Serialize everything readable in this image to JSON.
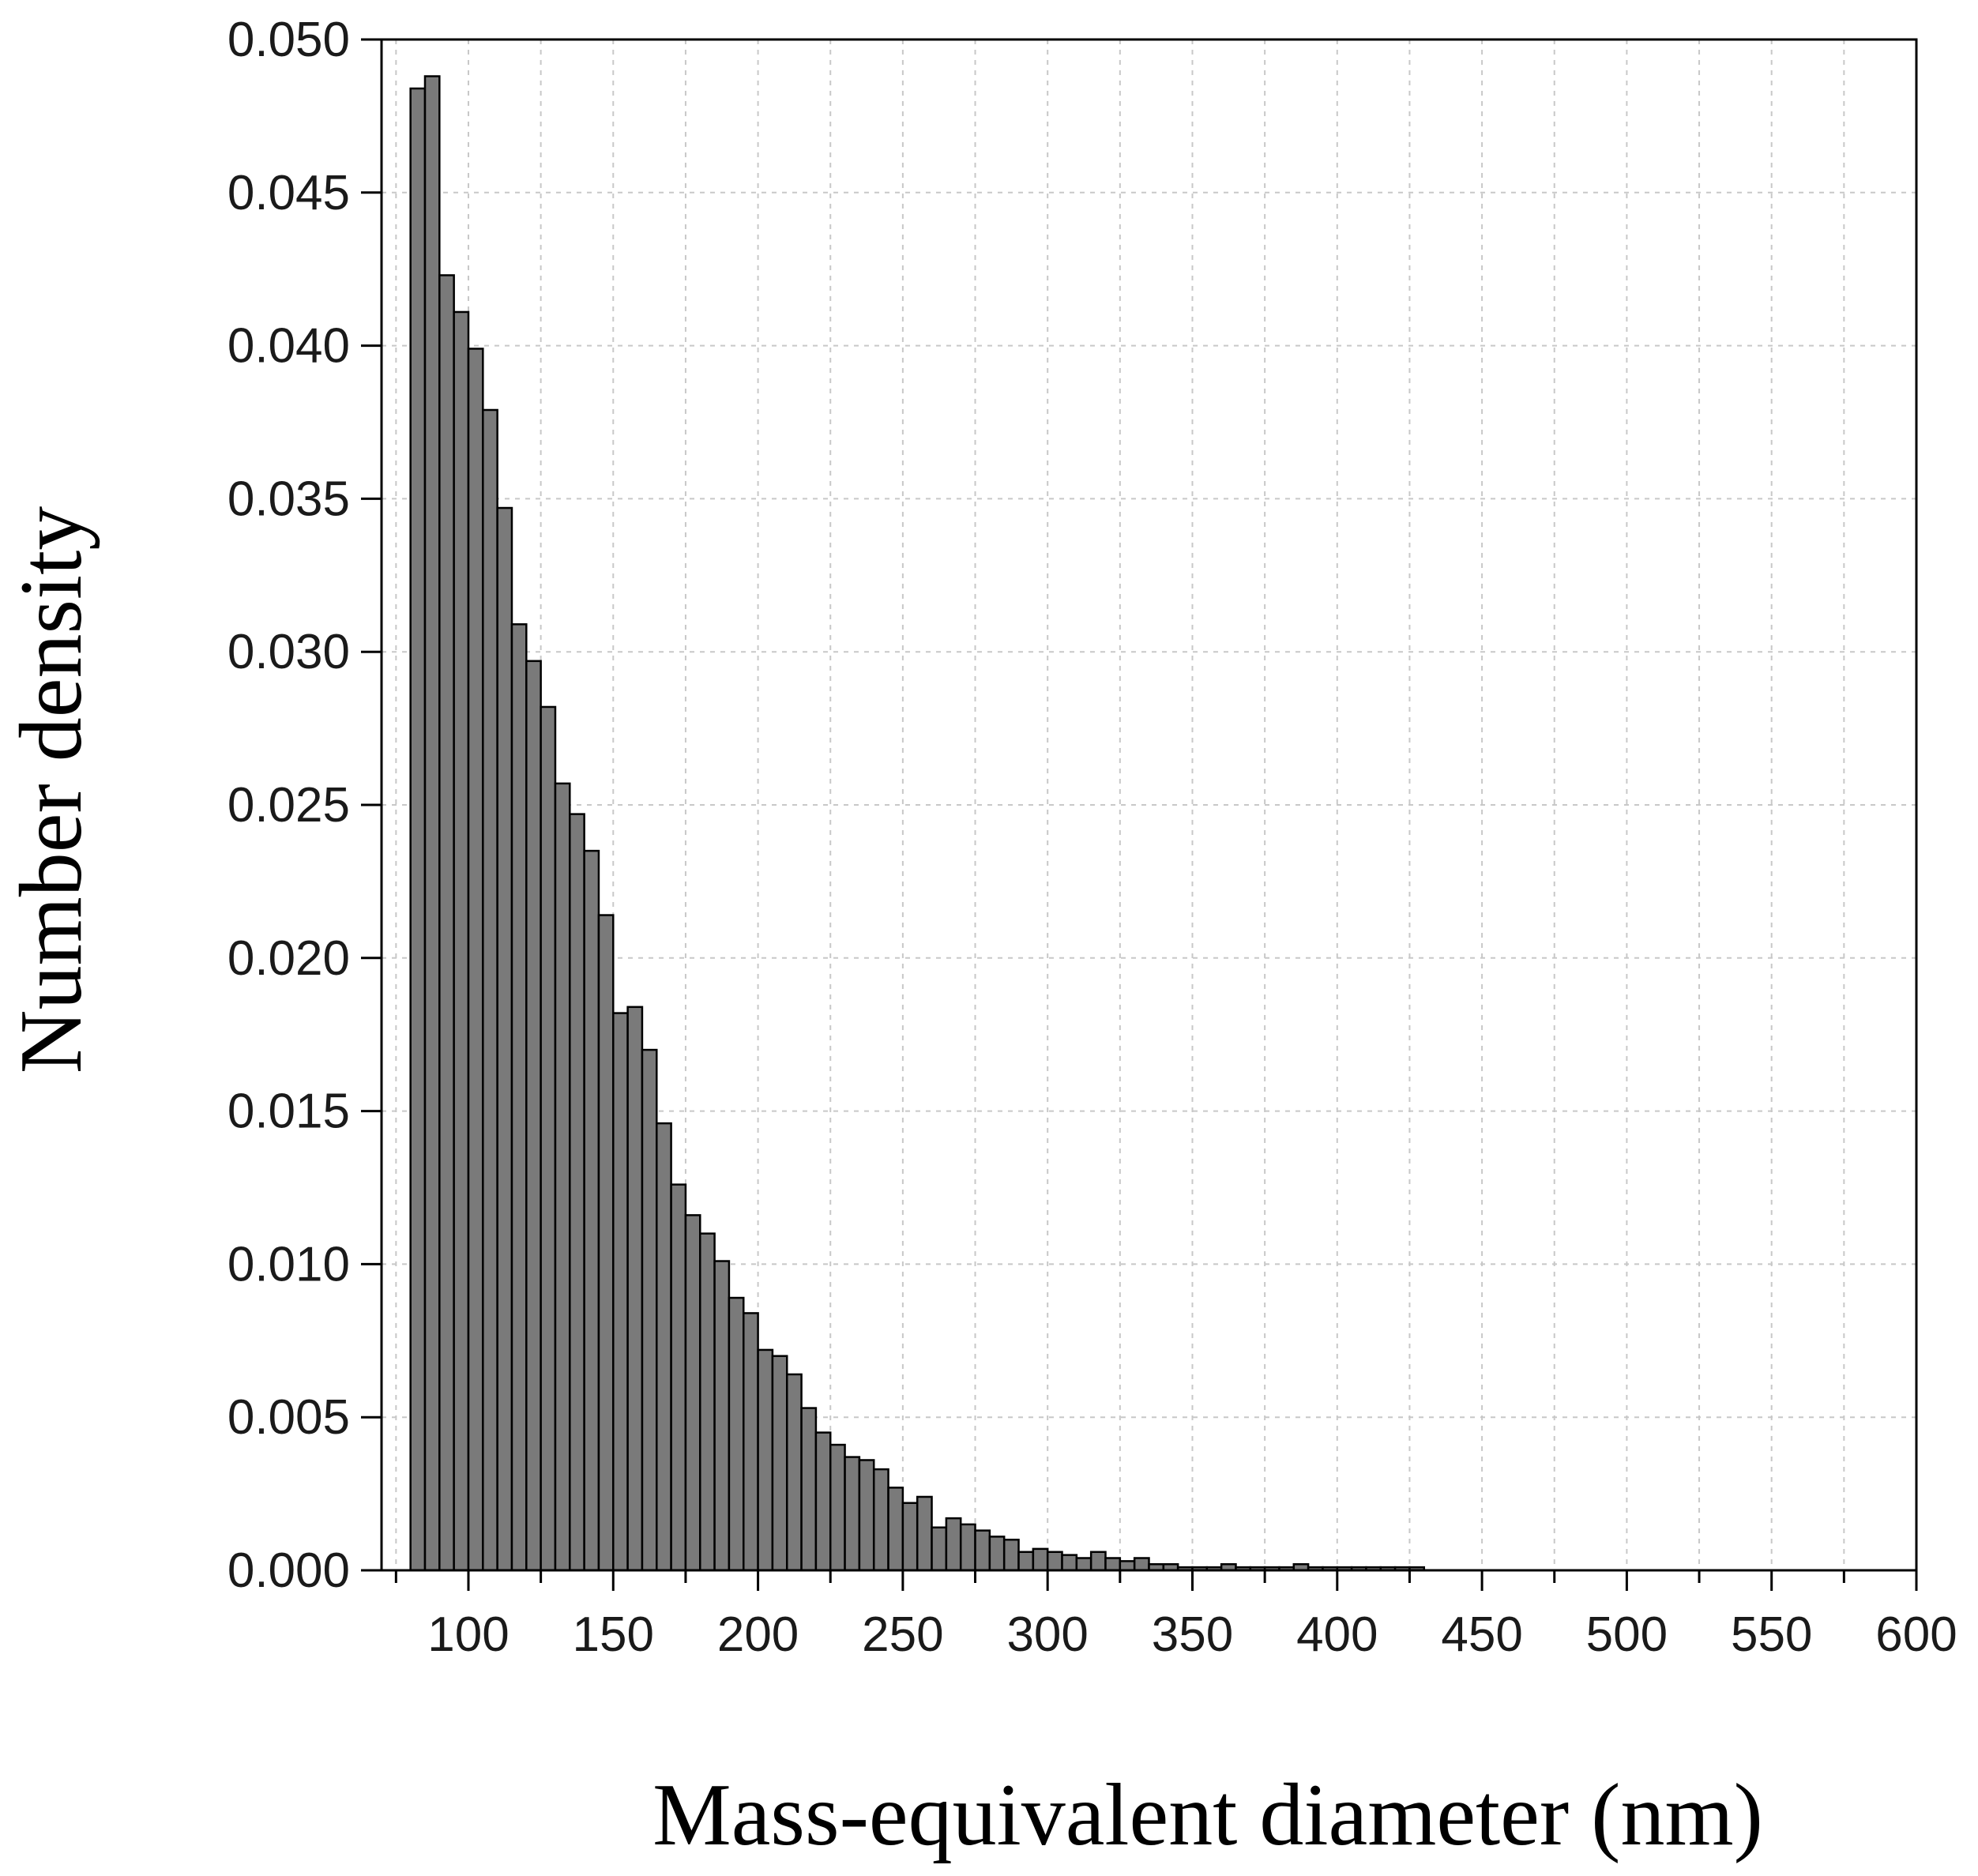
{
  "chart_data": {
    "type": "bar",
    "xlabel": "Mass-equivalent diameter (nm)",
    "ylabel": "Number density",
    "xlim": [
      70,
      600
    ],
    "ylim": [
      0,
      0.05
    ],
    "x_ticks": [
      "100",
      "150",
      "200",
      "250",
      "300",
      "350",
      "400",
      "450",
      "500",
      "550",
      "600"
    ],
    "y_ticks": [
      "0.000",
      "0.005",
      "0.010",
      "0.015",
      "0.020",
      "0.025",
      "0.030",
      "0.035",
      "0.040",
      "0.045",
      "0.050"
    ],
    "grid": true,
    "bar_color": "#7a7a7a",
    "bin_width_nm": 5,
    "bins_start_nm": [
      80,
      85,
      90,
      95,
      100,
      105,
      110,
      115,
      120,
      125,
      130,
      135,
      140,
      145,
      150,
      155,
      160,
      165,
      170,
      175,
      180,
      185,
      190,
      195,
      200,
      205,
      210,
      215,
      220,
      225,
      230,
      235,
      240,
      245,
      250,
      255,
      260,
      265,
      270,
      275,
      280,
      285,
      290,
      295,
      300,
      305,
      310,
      315,
      320,
      325,
      330,
      335,
      340,
      345,
      350,
      355,
      360,
      365,
      370,
      375,
      380,
      385,
      390,
      395,
      400,
      405,
      410,
      415,
      420,
      425
    ],
    "values": [
      0.0484,
      0.0488,
      0.0423,
      0.0411,
      0.0399,
      0.0379,
      0.0347,
      0.0309,
      0.0297,
      0.0282,
      0.0257,
      0.0247,
      0.0235,
      0.0214,
      0.0182,
      0.0184,
      0.017,
      0.0146,
      0.0126,
      0.0116,
      0.011,
      0.0101,
      0.0089,
      0.0084,
      0.0072,
      0.007,
      0.0064,
      0.0053,
      0.0045,
      0.0041,
      0.0037,
      0.0036,
      0.0033,
      0.0027,
      0.0022,
      0.0024,
      0.0014,
      0.0017,
      0.0015,
      0.0013,
      0.0011,
      0.001,
      0.0006,
      0.0007,
      0.0006,
      0.0005,
      0.0004,
      0.0006,
      0.0004,
      0.0003,
      0.0004,
      0.0002,
      0.0002,
      0.0001,
      0.0001,
      0.0001,
      0.0002,
      0.0001,
      0.0001,
      0.0001,
      0.0001,
      0.0002,
      0.0001,
      0.0001,
      0.0001,
      0.0001,
      0.0001,
      0.0001,
      0.0001,
      0.0001
    ]
  }
}
